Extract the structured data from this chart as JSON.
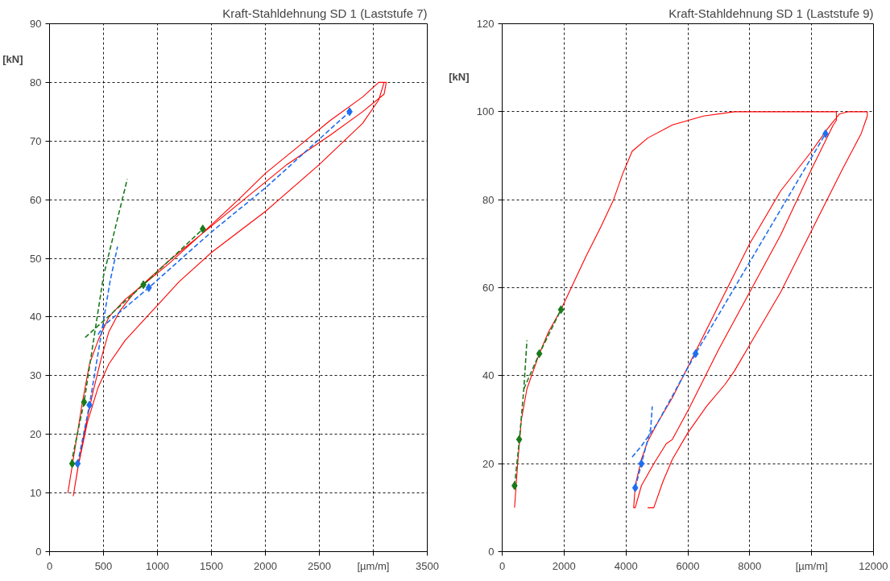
{
  "chart_data": [
    {
      "type": "line",
      "title": "Kraft-Stahldehnung SD 1 (Laststufe 7)",
      "ylabel": "[kN]",
      "xlim": [
        0,
        3500
      ],
      "xticks": [
        0,
        500,
        1000,
        1500,
        2000,
        2500,
        {
          "value": 3000,
          "label": "[µm/m]"
        },
        3500
      ],
      "ylim": [
        0,
        90
      ],
      "yticks": [
        0,
        10,
        20,
        30,
        40,
        50,
        60,
        70,
        80,
        90
      ],
      "grid": true,
      "series": [
        {
          "type": "line",
          "color": "#ff0000",
          "line_style": "solid",
          "x": [
            170,
            300,
            370,
            450,
            550,
            700,
            900,
            1100,
            1400,
            1750,
            2000,
            2300,
            2600,
            2900,
            3050,
            3120,
            3100,
            2900,
            2600,
            2200,
            1800,
            1400,
            1100,
            800,
            650,
            550,
            480,
            400,
            330,
            270,
            220,
            260,
            350,
            450,
            550,
            700,
            900,
            1000,
            1200,
            1500,
            2000,
            2500,
            2900,
            3050,
            3100
          ],
          "values": [
            10,
            25,
            32,
            36,
            40,
            43,
            46,
            49,
            54,
            60,
            64.5,
            69,
            73.5,
            77.5,
            80,
            80,
            78,
            75,
            71,
            66,
            60,
            54,
            49.5,
            44.5,
            41,
            37.5,
            33,
            27,
            21,
            15,
            9.5,
            14,
            22,
            28,
            32,
            36,
            40,
            42,
            46,
            51,
            58,
            66,
            73,
            77,
            80
          ]
        },
        {
          "type": "line",
          "color": "#1e6ef0",
          "line_style": "dashed",
          "x": [
            450,
            500,
            920,
            1500,
            2000,
            2780
          ],
          "values": [
            37,
            38.5,
            45,
            54.5,
            62,
            75
          ]
        },
        {
          "type": "line",
          "color": "#1e6ef0",
          "line_style": "dashed",
          "x": [
            260,
            370,
            560,
            630
          ],
          "values": [
            15,
            25,
            46,
            52
          ]
        },
        {
          "type": "line",
          "color": "#1a7a1a",
          "line_style": "dashed",
          "x": [
            330,
            450,
            870,
            1420
          ],
          "values": [
            36.5,
            38.5,
            45.5,
            55
          ]
        },
        {
          "type": "line",
          "color": "#1a7a1a",
          "line_style": "dashed",
          "x": [
            200,
            320,
            500,
            720
          ],
          "values": [
            15,
            25.5,
            47,
            63.5
          ]
        },
        {
          "type": "scatter",
          "color": "#1e6ef0",
          "marker": "diamond",
          "x": [
            260,
            370,
            920,
            2780
          ],
          "values": [
            15,
            25,
            45,
            75
          ]
        },
        {
          "type": "scatter",
          "color": "#1a7a1a",
          "marker": "diamond",
          "x": [
            210,
            320,
            870,
            1420
          ],
          "values": [
            15,
            25.5,
            45.5,
            55
          ]
        }
      ]
    },
    {
      "type": "line",
      "title": "Kraft-Stahldehnung SD 1 (Laststufe 9)",
      "ylabel": "[kN]",
      "xlim": [
        0,
        12000
      ],
      "xticks": [
        0,
        2000,
        4000,
        6000,
        8000,
        {
          "value": 10000,
          "label": "[µm/m]"
        },
        12000
      ],
      "ylim": [
        0,
        120
      ],
      "yticks": [
        0,
        20,
        40,
        60,
        80,
        100,
        120
      ],
      "grid": true,
      "series": [
        {
          "type": "line",
          "color": "#ff0000",
          "line_style": "solid",
          "x": [
            400,
            500,
            560,
            620,
            800,
            1000,
            1200,
            1500,
            1900,
            2300,
            2700,
            3200,
            3600,
            3900,
            4200,
            4700,
            5500,
            6500,
            7500,
            9000,
            10800,
            10800,
            10700,
            10000,
            9000,
            8000,
            7000,
            6000,
            5500,
            5300,
            4900,
            4500,
            4300,
            4250,
            4300,
            4500,
            4700,
            5000,
            5500,
            6000,
            7000,
            8000,
            9000,
            10000,
            10500,
            10900,
            11200,
            11800,
            11800,
            11600,
            11000,
            10000,
            9000,
            8000,
            7500,
            7200,
            6600,
            6000,
            5500,
            5200,
            4900,
            4700
          ],
          "values": [
            10,
            20,
            25,
            30,
            37,
            41,
            45,
            50,
            55,
            61,
            67,
            74,
            80,
            86,
            91,
            94,
            97,
            99,
            100,
            100,
            100,
            98,
            97,
            87,
            72,
            59,
            46,
            32,
            25.5,
            24.5,
            20,
            15,
            10,
            10,
            15,
            21,
            25,
            29,
            35,
            42,
            56,
            70,
            82,
            91,
            96,
            99.5,
            100,
            100,
            99,
            95,
            87,
            73,
            59,
            47,
            41,
            38,
            33,
            27,
            21,
            16,
            10,
            10
          ]
        },
        {
          "type": "line",
          "color": "#1e6ef0",
          "line_style": "dashed",
          "x": [
            4200,
            4500,
            5000,
            6250,
            10450
          ],
          "values": [
            21.5,
            24,
            29,
            45,
            95
          ]
        },
        {
          "type": "line",
          "color": "#1e6ef0",
          "line_style": "dashed",
          "x": [
            4300,
            4500,
            4800,
            4850
          ],
          "values": [
            14.5,
            20,
            28,
            33
          ]
        },
        {
          "type": "line",
          "color": "#1a7a1a",
          "line_style": "dashed",
          "x": [
            700,
            1200,
            1900
          ],
          "values": [
            37,
            45,
            55
          ]
        },
        {
          "type": "line",
          "color": "#1a7a1a",
          "line_style": "dashed",
          "x": [
            400,
            550,
            700,
            800
          ],
          "values": [
            15,
            25,
            37,
            48
          ]
        },
        {
          "type": "scatter",
          "color": "#1e6ef0",
          "marker": "diamond",
          "x": [
            4300,
            4500,
            6250,
            10450
          ],
          "values": [
            14.5,
            20,
            45,
            95
          ]
        },
        {
          "type": "scatter",
          "color": "#1a7a1a",
          "marker": "diamond",
          "x": [
            400,
            550,
            1200,
            1900
          ],
          "values": [
            15,
            25.5,
            45,
            55
          ]
        }
      ]
    }
  ]
}
